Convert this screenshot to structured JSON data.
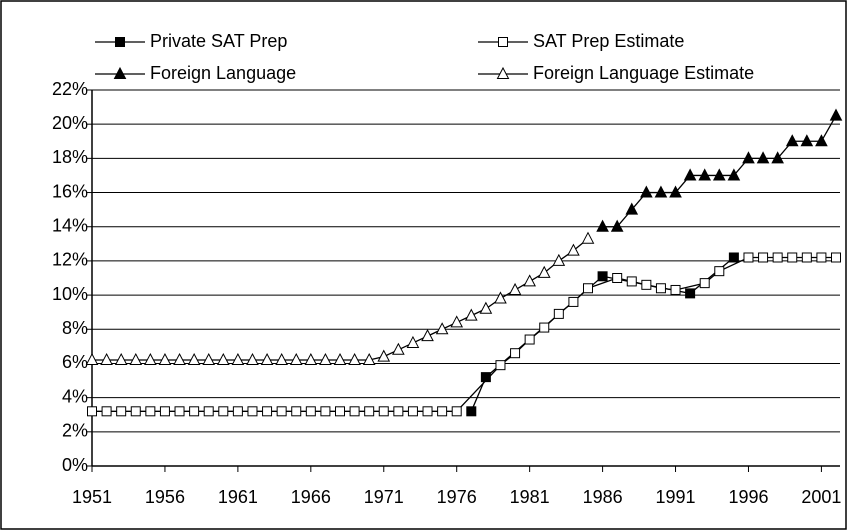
{
  "chart_data": {
    "type": "line",
    "xlim": [
      1951,
      2002
    ],
    "xticks": [
      1951,
      1956,
      1961,
      1966,
      1971,
      1976,
      1981,
      1986,
      1991,
      1996,
      2001
    ],
    "ylim": [
      0,
      22
    ],
    "yticks": [
      {
        "value": 0,
        "label": "0%"
      },
      {
        "value": 2,
        "label": "2%"
      },
      {
        "value": 4,
        "label": "4%"
      },
      {
        "value": 6,
        "label": "6%"
      },
      {
        "value": 8,
        "label": "8%"
      },
      {
        "value": 10,
        "label": "10%"
      },
      {
        "value": 12,
        "label": "12%"
      },
      {
        "value": 14,
        "label": "14%"
      },
      {
        "value": 16,
        "label": "16%"
      },
      {
        "value": 18,
        "label": "18%"
      },
      {
        "value": 20,
        "label": "20%"
      },
      {
        "value": 22,
        "label": "22%"
      }
    ],
    "grid": true,
    "legend": "top",
    "series": [
      {
        "name": "Private SAT Prep",
        "color": "#000000",
        "marker": "square-filled",
        "x": [
          1977,
          1978,
          1986,
          1992,
          1995
        ],
        "values": [
          3.2,
          5.2,
          11.1,
          10.1,
          12.2
        ]
      },
      {
        "name": "SAT Prep Estimate",
        "color": "#000000",
        "marker": "square-open",
        "x": [
          1951,
          1952,
          1953,
          1954,
          1955,
          1956,
          1957,
          1958,
          1959,
          1960,
          1961,
          1962,
          1963,
          1964,
          1965,
          1966,
          1967,
          1968,
          1969,
          1970,
          1971,
          1972,
          1973,
          1974,
          1975,
          1976,
          1979,
          1980,
          1981,
          1982,
          1983,
          1984,
          1985,
          1987,
          1988,
          1989,
          1990,
          1991,
          1993,
          1994,
          1996,
          1997,
          1998,
          1999,
          2000,
          2001,
          2002
        ],
        "values": [
          3.2,
          3.2,
          3.2,
          3.2,
          3.2,
          3.2,
          3.2,
          3.2,
          3.2,
          3.2,
          3.2,
          3.2,
          3.2,
          3.2,
          3.2,
          3.2,
          3.2,
          3.2,
          3.2,
          3.2,
          3.2,
          3.2,
          3.2,
          3.2,
          3.2,
          3.2,
          5.9,
          6.6,
          7.4,
          8.1,
          8.9,
          9.6,
          10.4,
          11.0,
          10.8,
          10.6,
          10.4,
          10.3,
          10.7,
          11.4,
          12.2,
          12.2,
          12.2,
          12.2,
          12.2,
          12.2,
          12.2
        ]
      },
      {
        "name": "Foreign Language",
        "color": "#000000",
        "marker": "triangle-filled",
        "x": [
          1986,
          1987,
          1988,
          1989,
          1990,
          1991,
          1992,
          1993,
          1994,
          1995,
          1996,
          1997,
          1998,
          1999,
          2000,
          2001,
          2002
        ],
        "values": [
          14,
          14,
          15,
          16,
          16,
          16,
          17,
          17,
          17,
          17,
          18,
          18,
          18,
          19,
          19,
          19,
          20.5
        ]
      },
      {
        "name": "Foreign Language Estimate",
        "color": "#000000",
        "marker": "triangle-open",
        "x": [
          1951,
          1952,
          1953,
          1954,
          1955,
          1956,
          1957,
          1958,
          1959,
          1960,
          1961,
          1962,
          1963,
          1964,
          1965,
          1966,
          1967,
          1968,
          1969,
          1970,
          1971,
          1972,
          1973,
          1974,
          1975,
          1976,
          1977,
          1978,
          1979,
          1980,
          1981,
          1982,
          1983,
          1984,
          1985
        ],
        "values": [
          6.2,
          6.2,
          6.2,
          6.2,
          6.2,
          6.2,
          6.2,
          6.2,
          6.2,
          6.2,
          6.2,
          6.2,
          6.2,
          6.2,
          6.2,
          6.2,
          6.2,
          6.2,
          6.2,
          6.2,
          6.4,
          6.8,
          7.2,
          7.6,
          8.0,
          8.4,
          8.8,
          9.2,
          9.8,
          10.3,
          10.8,
          11.3,
          12.0,
          12.6,
          13.3
        ]
      }
    ]
  }
}
